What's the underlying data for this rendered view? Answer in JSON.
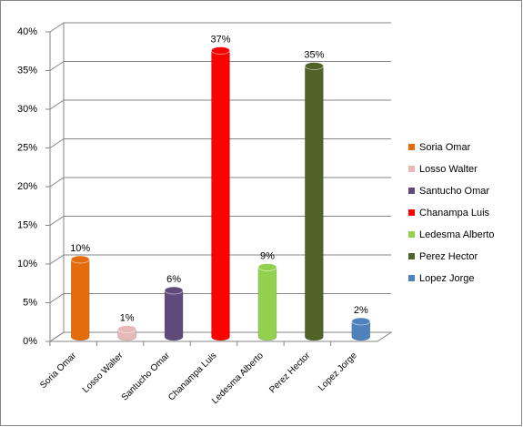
{
  "chart_data": {
    "type": "bar",
    "categories": [
      "Soria Omar",
      "Losso Walter",
      "Santucho  Omar",
      "Chanampa  Luis",
      "Ledesma Alberto",
      "Perez Hector",
      "Lopez Jorge"
    ],
    "values": [
      10,
      1,
      6,
      37,
      9,
      35,
      2
    ],
    "value_labels": [
      "10%",
      "1%",
      "6%",
      "37%",
      "9%",
      "35%",
      "2%"
    ],
    "colors": [
      "#e46c0a",
      "#e6b9b8",
      "#604a7b",
      "#ff0000",
      "#92d050",
      "#4f6228",
      "#4f81bd"
    ],
    "ylim": [
      0,
      40
    ],
    "yticks": [
      {
        "value": 0,
        "label": "0%"
      },
      {
        "value": 5,
        "label": "5%"
      },
      {
        "value": 10,
        "label": "10%"
      },
      {
        "value": 15,
        "label": "15%"
      },
      {
        "value": 20,
        "label": "20%"
      },
      {
        "value": 25,
        "label": "25%"
      },
      {
        "value": 30,
        "label": "30%"
      },
      {
        "value": 35,
        "label": "35%"
      },
      {
        "value": 40,
        "label": "40%"
      }
    ],
    "grid": true,
    "legend": "right"
  }
}
